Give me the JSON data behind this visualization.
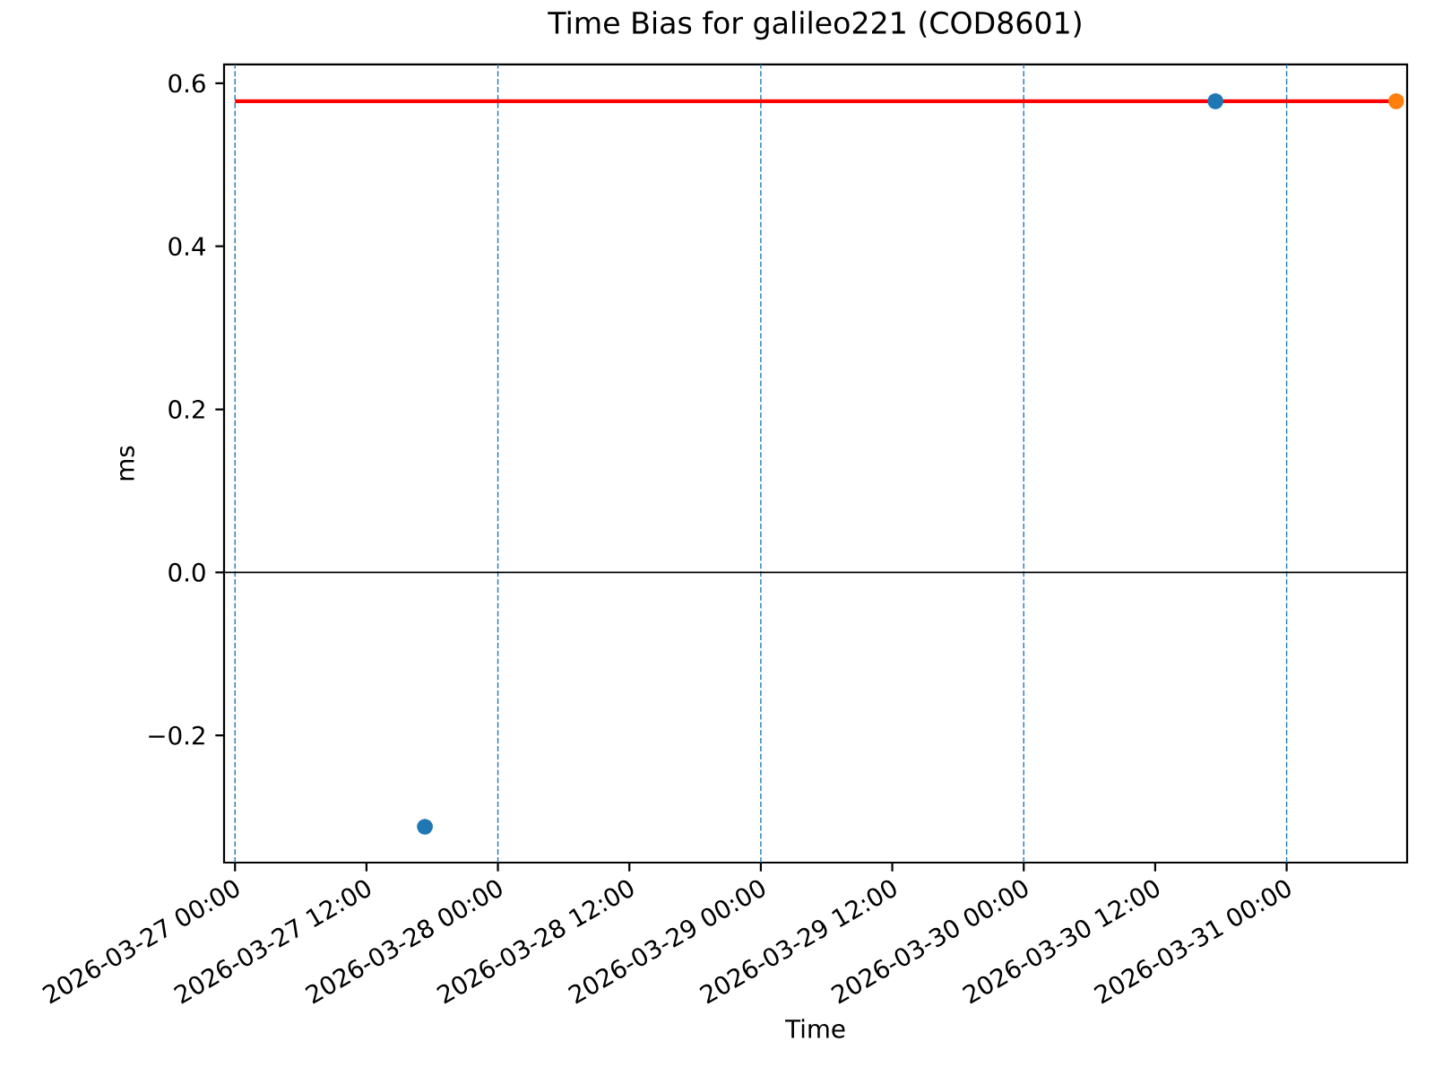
{
  "chart_data": {
    "type": "scatter",
    "title": "Time Bias for galileo221 (COD8601)",
    "xlabel": "Time",
    "ylabel": "ms",
    "series": [
      {
        "color": "#1f77b4",
        "x": [
          "2026-03-27T17:20",
          "2026-03-30T17:30"
        ],
        "values": [
          -0.312,
          0.578
        ]
      },
      {
        "color": "#ff7f0e",
        "x": [
          "2026-03-31T10:00"
        ],
        "values": [
          0.578
        ]
      },
      {
        "type": "line",
        "color": "#ff0000",
        "marker": "none",
        "x": [
          "2026-03-27T00:00",
          "2026-03-31T10:00"
        ],
        "values": [
          0.578,
          0.578
        ]
      }
    ],
    "marker": "circle",
    "grid": false,
    "xlim": [
      "2026-03-26T23:00",
      "2026-03-31T11:00"
    ],
    "ylim": [
      -0.356,
      0.623
    ],
    "xticks": [
      {
        "value": "2026-03-27T00:00",
        "label": "2026-03-27 00:00"
      },
      {
        "value": "2026-03-27T12:00",
        "label": "2026-03-27 12:00"
      },
      {
        "value": "2026-03-28T00:00",
        "label": "2026-03-28 00:00"
      },
      {
        "value": "2026-03-28T12:00",
        "label": "2026-03-28 12:00"
      },
      {
        "value": "2026-03-29T00:00",
        "label": "2026-03-29 00:00"
      },
      {
        "value": "2026-03-29T12:00",
        "label": "2026-03-29 12:00"
      },
      {
        "value": "2026-03-30T00:00",
        "label": "2026-03-30 00:00"
      },
      {
        "value": "2026-03-30T12:00",
        "label": "2026-03-30 12:00"
      },
      {
        "value": "2026-03-31T00:00",
        "label": "2026-03-31 00:00"
      }
    ],
    "yticks": [
      {
        "value": -0.2,
        "label": "−0.2"
      },
      {
        "value": 0,
        "label": "0.0"
      },
      0.2,
      0.4,
      0.6
    ],
    "ref_lines": [
      {
        "axis": "x",
        "value": "2026-03-27T00:00",
        "color": "#1f77b4",
        "line_style": "dashed"
      },
      {
        "axis": "x",
        "value": "2026-03-28T00:00",
        "color": "#1f77b4",
        "line_style": "dashed"
      },
      {
        "axis": "x",
        "value": "2026-03-29T00:00",
        "color": "#1f77b4",
        "line_style": "dashed"
      },
      {
        "axis": "x",
        "value": "2026-03-30T00:00",
        "color": "#1f77b4",
        "line_style": "dashed"
      },
      {
        "axis": "x",
        "value": "2026-03-31T00:00",
        "color": "#1f77b4",
        "line_style": "dashed"
      },
      {
        "axis": "y",
        "value": 0,
        "color": "#000000",
        "line_style": "solid"
      }
    ]
  }
}
